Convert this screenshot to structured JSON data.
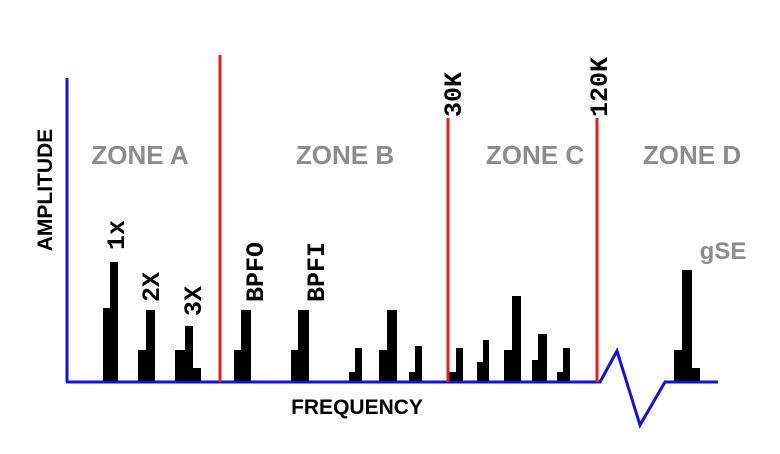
{
  "axes": {
    "y_label": "AMPLITUDE",
    "x_label": "FREQUENCY"
  },
  "zones": [
    "ZONE A",
    "ZONE B",
    "ZONE C",
    "ZONE D"
  ],
  "markers": [
    "30K",
    "120K"
  ],
  "peaks": [
    "1x",
    "2X",
    "3X",
    "BPFO",
    "BPFI",
    "gSE"
  ]
}
